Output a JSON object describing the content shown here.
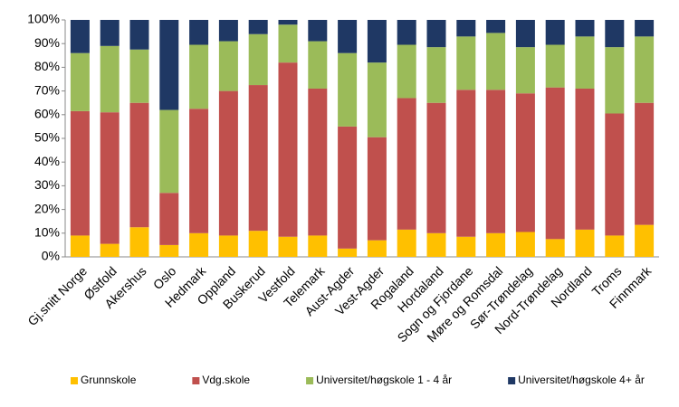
{
  "chart_data": {
    "type": "stacked_bar",
    "categories": [
      "Gj.snitt Norge",
      "Østfold",
      "Akershus",
      "Oslo",
      "Hedmark",
      "Oppland",
      "Buskerud",
      "Vestfold",
      "Telemark",
      "Aust-Agder",
      "Vest-Agder",
      "Rogaland",
      "Hordaland",
      "Sogn og Fjordane",
      "Møre og Romsdal",
      "Sør-Trøndelag",
      "Nord-Trøndelag",
      "Nordland",
      "Troms",
      "Finnmark"
    ],
    "series": [
      {
        "name": "Grunnskole",
        "color": "#ffc000",
        "values": [
          9,
          5.5,
          12.5,
          5,
          10,
          9,
          11,
          8.5,
          9,
          3.5,
          7,
          11.5,
          10,
          8.5,
          10,
          10.5,
          7.5,
          11.5,
          9,
          13.5
        ]
      },
      {
        "name": "Vdg.skole",
        "color": "#c0504d",
        "values": [
          52.5,
          55.5,
          52.5,
          22,
          52.5,
          61,
          61.5,
          73.5,
          62,
          51.5,
          43.5,
          55.5,
          55,
          62,
          60.5,
          58.5,
          64,
          59.5,
          51.5,
          51.5
        ]
      },
      {
        "name": "Universitet/høgskole 1 - 4 år",
        "color": "#9bbb59",
        "values": [
          24.5,
          28,
          22.5,
          35,
          27,
          21,
          21.5,
          16,
          20,
          31,
          31.5,
          22.5,
          23.5,
          22.5,
          24,
          19.5,
          18,
          22,
          28,
          28
        ]
      },
      {
        "name": "Universitet/høgskole 4+ år",
        "color": "#1f3864",
        "values": [
          14,
          11,
          12.5,
          38,
          10.5,
          9,
          6,
          2,
          9,
          14,
          18,
          10.5,
          11.5,
          7,
          5.5,
          11.5,
          10.5,
          7,
          11.5,
          7
        ]
      }
    ],
    "ylim": [
      0,
      100
    ],
    "yticks": [
      {
        "value": 0,
        "label": "0%"
      },
      {
        "value": 10,
        "label": "10%"
      },
      {
        "value": 20,
        "label": "20%"
      },
      {
        "value": 30,
        "label": "30%"
      },
      {
        "value": 40,
        "label": "40%"
      },
      {
        "value": 50,
        "label": "50%"
      },
      {
        "value": 60,
        "label": "60%"
      },
      {
        "value": 70,
        "label": "70%"
      },
      {
        "value": 80,
        "label": "80%"
      },
      {
        "value": 90,
        "label": "90%"
      },
      {
        "value": 100,
        "label": "100%"
      }
    ],
    "legend": "bottom"
  }
}
